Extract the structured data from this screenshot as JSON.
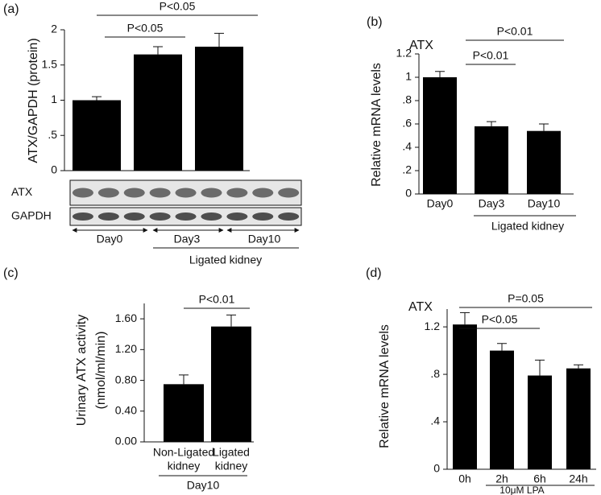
{
  "chart_data": [
    {
      "type": "bar",
      "panel_label": "(a)",
      "ylabel": "ATX/GAPDH (protein)",
      "categories": [
        "Day0",
        "Day3",
        "Day10"
      ],
      "values": [
        1,
        1.65,
        1.76
      ],
      "errors": [
        0.05,
        0.11,
        0.19
      ],
      "color": "#000000",
      "ylim": [
        0,
        2
      ],
      "yticks": [
        0,
        {
          "value": 0.5,
          "label": ".5"
        },
        1,
        1.5,
        2
      ],
      "annotations": [
        "P<0.05",
        "P<0.05"
      ],
      "group_label": "Ligated kidney",
      "blot_labels": [
        "ATX",
        "GAPDH"
      ]
    },
    {
      "type": "bar",
      "panel_label": "(b)",
      "title": "ATX",
      "ylabel": "Relative mRNA levels",
      "categories": [
        "Day0",
        "Day3",
        "Day10"
      ],
      "values": [
        1,
        0.58,
        0.54
      ],
      "errors": [
        0.05,
        0.04,
        0.06
      ],
      "color": "#000000",
      "ylim": [
        0,
        1.2
      ],
      "yticks": [
        0,
        {
          "value": 0.2,
          "label": ".2"
        },
        {
          "value": 0.4,
          "label": ".4"
        },
        {
          "value": 0.6,
          "label": ".6"
        },
        {
          "value": 0.8,
          "label": ".8"
        },
        1,
        1.2
      ],
      "annotations": [
        "P<0.01",
        "P<0.01"
      ],
      "group_label": "Ligated kidney"
    },
    {
      "type": "bar",
      "panel_label": "(c)",
      "ylabel": [
        "Urinary ATX activity",
        "(nmol/ml/min)"
      ],
      "categories": [
        [
          "Non-Ligated",
          "kidney"
        ],
        [
          "Ligated",
          "kidney"
        ]
      ],
      "values": [
        0.75,
        1.5
      ],
      "errors": [
        0.12,
        0.15
      ],
      "color": "#000000",
      "ylim": [
        0,
        1.8
      ],
      "yticks": [
        {
          "value": 0,
          "label": "0.00"
        },
        {
          "value": 0.4,
          "label": "0.40"
        },
        {
          "value": 0.8,
          "label": "0.80"
        },
        {
          "value": 1.2,
          "label": "1.20"
        },
        {
          "value": 1.6,
          "label": "1.60"
        }
      ],
      "annotations": [
        "P<0.01"
      ],
      "group_label": "Day10"
    },
    {
      "type": "bar",
      "panel_label": "(d)",
      "title": "ATX",
      "ylabel": "Relative mRNA levels",
      "categories": [
        "0h",
        "2h",
        "6h",
        "24h"
      ],
      "values": [
        1.22,
        1,
        0.79,
        0.85
      ],
      "errors": [
        0.1,
        0.06,
        0.13,
        0.03
      ],
      "color": "#000000",
      "ylim": [
        0,
        1.35
      ],
      "yticks": [
        0,
        {
          "value": 0.4,
          "label": ".4"
        },
        {
          "value": 0.8,
          "label": ".8"
        },
        1.2
      ],
      "annotations": [
        "P<0.05",
        "P=0.05"
      ],
      "group_label": "10μM LPA"
    }
  ]
}
